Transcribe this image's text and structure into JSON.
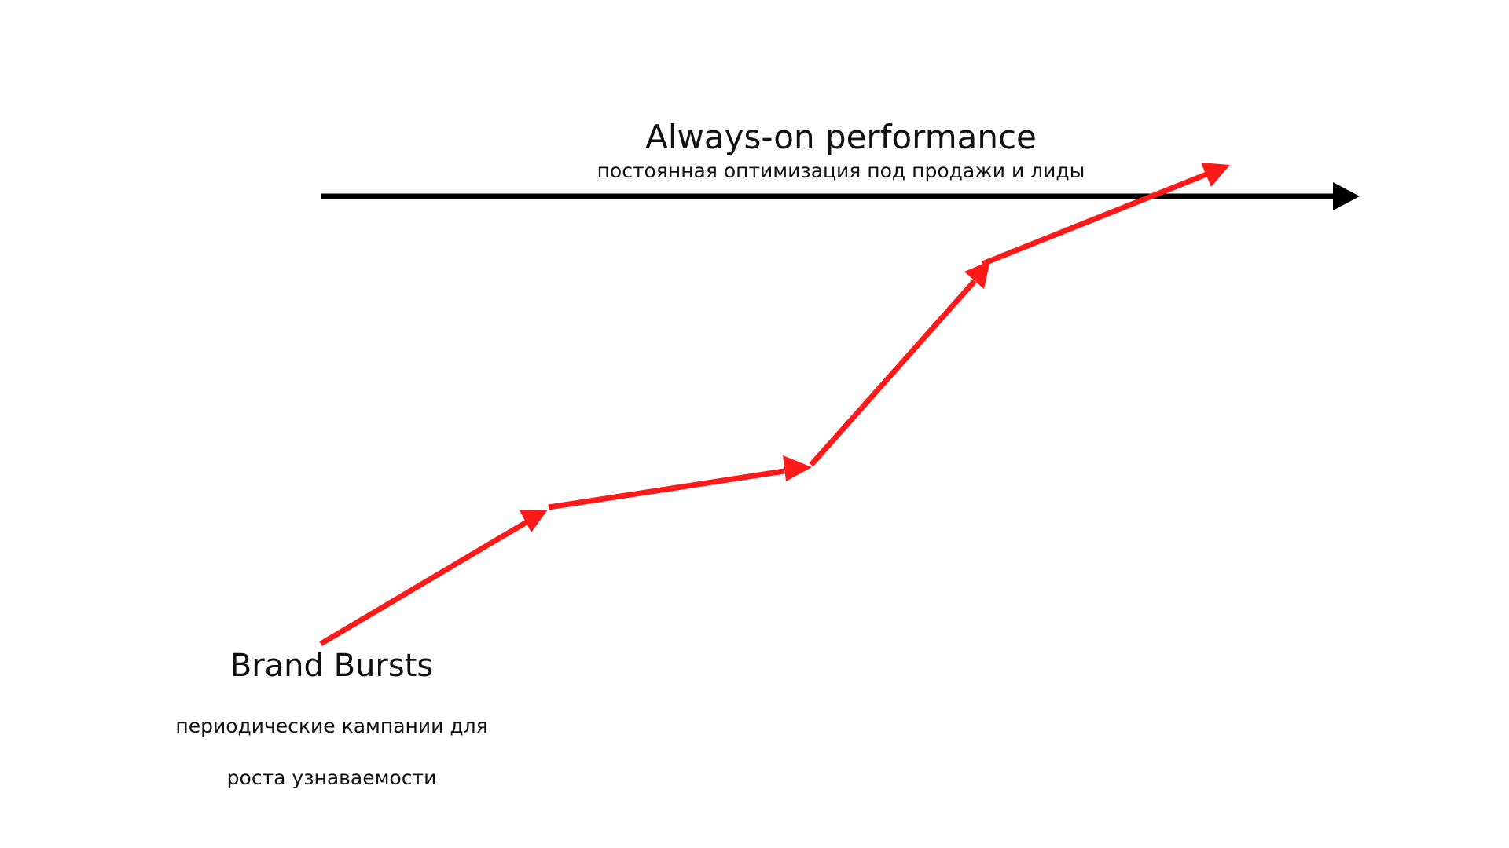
{
  "always_on": {
    "title": "Always-on performance",
    "subtitle": "постоянная оптимизация под продажи и лиды",
    "arrow_color": "#000000"
  },
  "brand_bursts": {
    "title": "Brand Bursts",
    "subtitle_line1": "периодические кампании для",
    "subtitle_line2": "роста узнаваемости",
    "arrow_color": "#ff1a1a"
  }
}
